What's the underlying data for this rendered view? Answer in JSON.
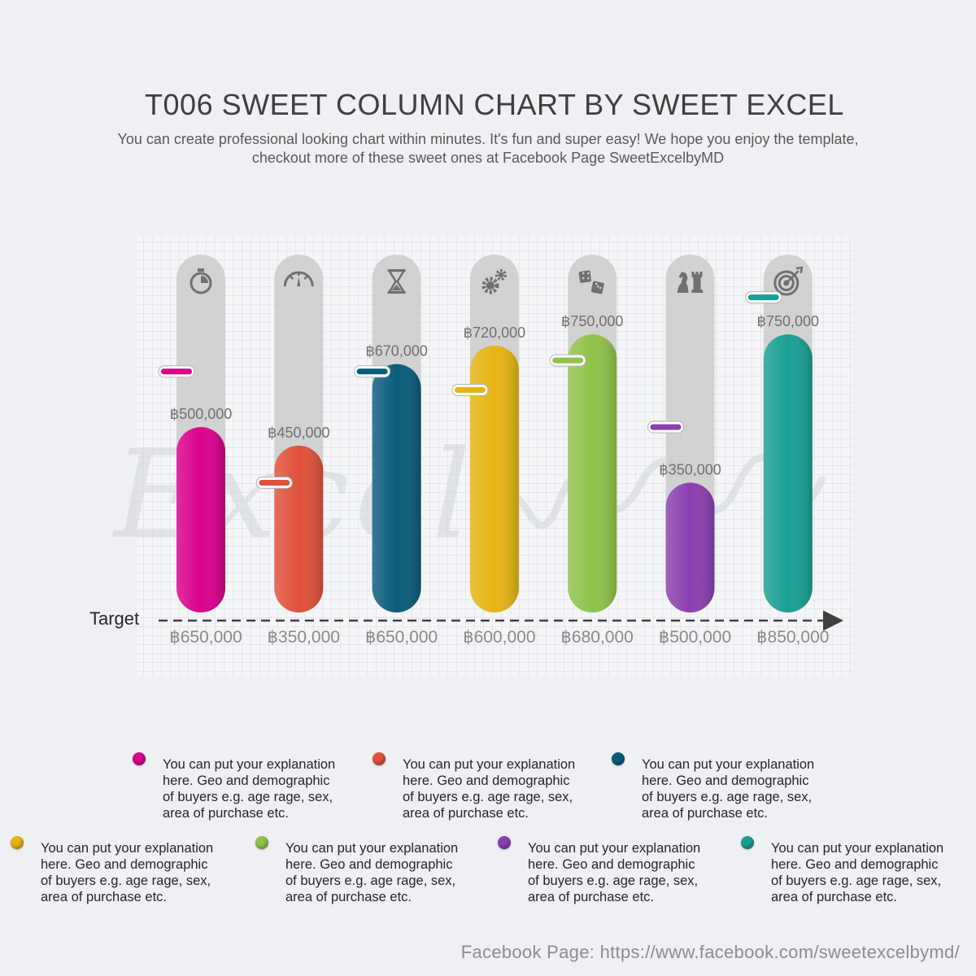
{
  "header": {
    "title": "T006 SWEET COLUMN CHART BY SWEET EXCEL",
    "subtitle_line1": "You can create professional looking chart within minutes. It's fun and super easy! We hope you enjoy the template,",
    "subtitle_line2": "checkout more of these sweet ones at Facebook Page SweetExcelbyMD"
  },
  "chart_data": {
    "type": "bar",
    "title": "T006 SWEET COLUMN CHART BY SWEET EXCEL",
    "baseline_label": "Target",
    "ylim": [
      0,
      950000
    ],
    "grid": true,
    "categories": [
      "฿650,000",
      "฿350,000",
      "฿650,000",
      "฿600,000",
      "฿680,000",
      "฿500,000",
      "฿850,000"
    ],
    "series": [
      {
        "values": [
          500000,
          450000,
          670000,
          720000,
          750000,
          350000,
          750000
        ],
        "value_labels": [
          "฿500,000",
          "฿450,000",
          "฿670,000",
          "฿720,000",
          "฿750,000",
          "฿350,000",
          "฿750,000"
        ]
      }
    ],
    "targets": [
      650000,
      350000,
      650000,
      600000,
      680000,
      500000,
      850000
    ],
    "icons": [
      "stopwatch-icon",
      "speedometer-icon",
      "hourglass-icon",
      "gears-icon",
      "dice-icon",
      "chess-icon",
      "target-icon"
    ],
    "colors": [
      "#d9008b",
      "#e0503a",
      "#0a5c7a",
      "#e6b414",
      "#8fc24a",
      "#8a3fb0",
      "#1a9e94"
    ]
  },
  "watermark": "Excel",
  "legend": {
    "text": "You can put your explanation here. Geo and demographic of buyers e.g. age rage, sex, area of purchase etc.",
    "items": [
      {
        "color": "#d9008b",
        "line1": "You can put your explanation",
        "line2": "here. Geo and demographic",
        "line3": "of buyers e.g. age rage, sex,",
        "line4": "area of purchase etc."
      },
      {
        "color": "#e0503a",
        "line1": "You can put your explanation",
        "line2": "here. Geo and demographic",
        "line3": "of buyers e.g. age rage, sex,",
        "line4": "area of purchase etc."
      },
      {
        "color": "#0a5c7a",
        "line1": "You can put your explanation",
        "line2": "here. Geo and demographic",
        "line3": "of buyers e.g. age rage, sex,",
        "line4": "area of purchase etc."
      },
      {
        "color": "#e6b414",
        "line1": "You can put your explanation",
        "line2": "here. Geo and demographic",
        "line3": "of buyers e.g. age rage, sex,",
        "line4": "area of purchase etc."
      },
      {
        "color": "#8fc24a",
        "line1": "You can put your explanation",
        "line2": "here. Geo and demographic",
        "line3": "of buyers e.g. age rage, sex,",
        "line4": "area of purchase etc."
      },
      {
        "color": "#8a3fb0",
        "line1": "You can put your explanation",
        "line2": "here. Geo and demographic",
        "line3": "of buyers e.g. age rage, sex,",
        "line4": "area of purchase etc."
      },
      {
        "color": "#1a9e94",
        "line1": "You can put your explanation",
        "line2": "here. Geo and demographic",
        "line3": "of buyers e.g. age rage, sex,",
        "line4": "area of purchase etc."
      }
    ]
  },
  "footer": {
    "text": "Facebook Page: https://www.facebook.com/sweetexcelbymd/"
  }
}
